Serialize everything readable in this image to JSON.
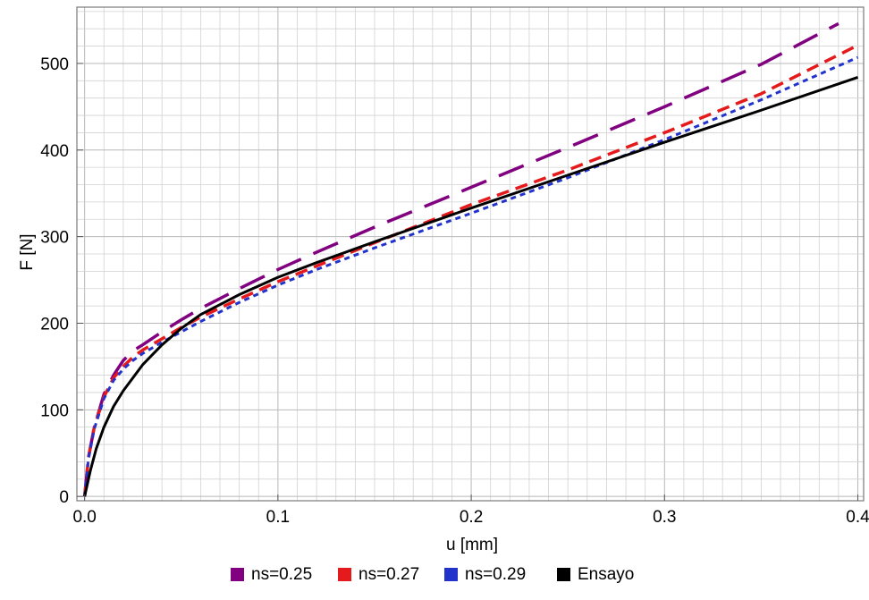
{
  "chart_data": {
    "type": "line",
    "title": "",
    "xlabel": "u [mm]",
    "ylabel": "F [N]",
    "xlim": [
      -0.004,
      0.403
    ],
    "ylim": [
      -5,
      565
    ],
    "x_ticks": [
      0.0,
      0.1,
      0.2,
      0.3,
      0.4
    ],
    "x_tick_labels": [
      "0.0",
      "0.1",
      "0.2",
      "0.3",
      "0.4"
    ],
    "y_ticks": [
      0,
      100,
      200,
      300,
      400,
      500
    ],
    "y_tick_labels": [
      "0",
      "100",
      "200",
      "300",
      "400",
      "500"
    ],
    "grid": true,
    "legend_position": "bottom",
    "series": [
      {
        "name": "ns=0.25",
        "color": "#800080",
        "style": "long-dash",
        "x": [
          0,
          0.002,
          0.005,
          0.01,
          0.015,
          0.02,
          0.025,
          0.03,
          0.04,
          0.05,
          0.06,
          0.08,
          0.1,
          0.12,
          0.15,
          0.2,
          0.25,
          0.3,
          0.35,
          0.39
        ],
        "y": [
          0,
          45,
          80,
          118,
          140,
          157,
          168,
          175,
          190,
          204,
          217,
          240,
          262,
          282,
          311,
          357,
          403,
          450,
          499,
          546
        ]
      },
      {
        "name": "ns=0.27",
        "color": "#e41a1c",
        "style": "dashed",
        "x": [
          0,
          0.002,
          0.005,
          0.01,
          0.015,
          0.02,
          0.025,
          0.03,
          0.04,
          0.05,
          0.06,
          0.08,
          0.1,
          0.12,
          0.15,
          0.2,
          0.25,
          0.3,
          0.35,
          0.4
        ],
        "y": [
          0,
          45,
          80,
          115,
          137,
          150,
          161,
          169,
          182,
          195,
          207,
          228,
          248,
          266,
          293,
          337,
          377,
          420,
          465,
          521
        ]
      },
      {
        "name": "ns=0.29",
        "color": "#2233cc",
        "style": "dotted",
        "x": [
          0,
          0.002,
          0.005,
          0.01,
          0.015,
          0.02,
          0.025,
          0.03,
          0.04,
          0.05,
          0.06,
          0.08,
          0.1,
          0.12,
          0.15,
          0.2,
          0.25,
          0.3,
          0.35,
          0.4
        ],
        "y": [
          0,
          44,
          78,
          113,
          134,
          147,
          157,
          165,
          178,
          190,
          202,
          224,
          244,
          262,
          287,
          327,
          368,
          412,
          458,
          507
        ]
      },
      {
        "name": "Ensayo",
        "color": "#000000",
        "style": "solid",
        "x": [
          0,
          0.003,
          0.006,
          0.01,
          0.015,
          0.02,
          0.03,
          0.04,
          0.05,
          0.06,
          0.08,
          0.1,
          0.12,
          0.15,
          0.2,
          0.25,
          0.3,
          0.35,
          0.4
        ],
        "y": [
          0,
          30,
          55,
          80,
          104,
          122,
          152,
          175,
          194,
          210,
          233,
          253,
          270,
          294,
          333,
          371,
          409,
          446,
          484
        ]
      }
    ]
  }
}
